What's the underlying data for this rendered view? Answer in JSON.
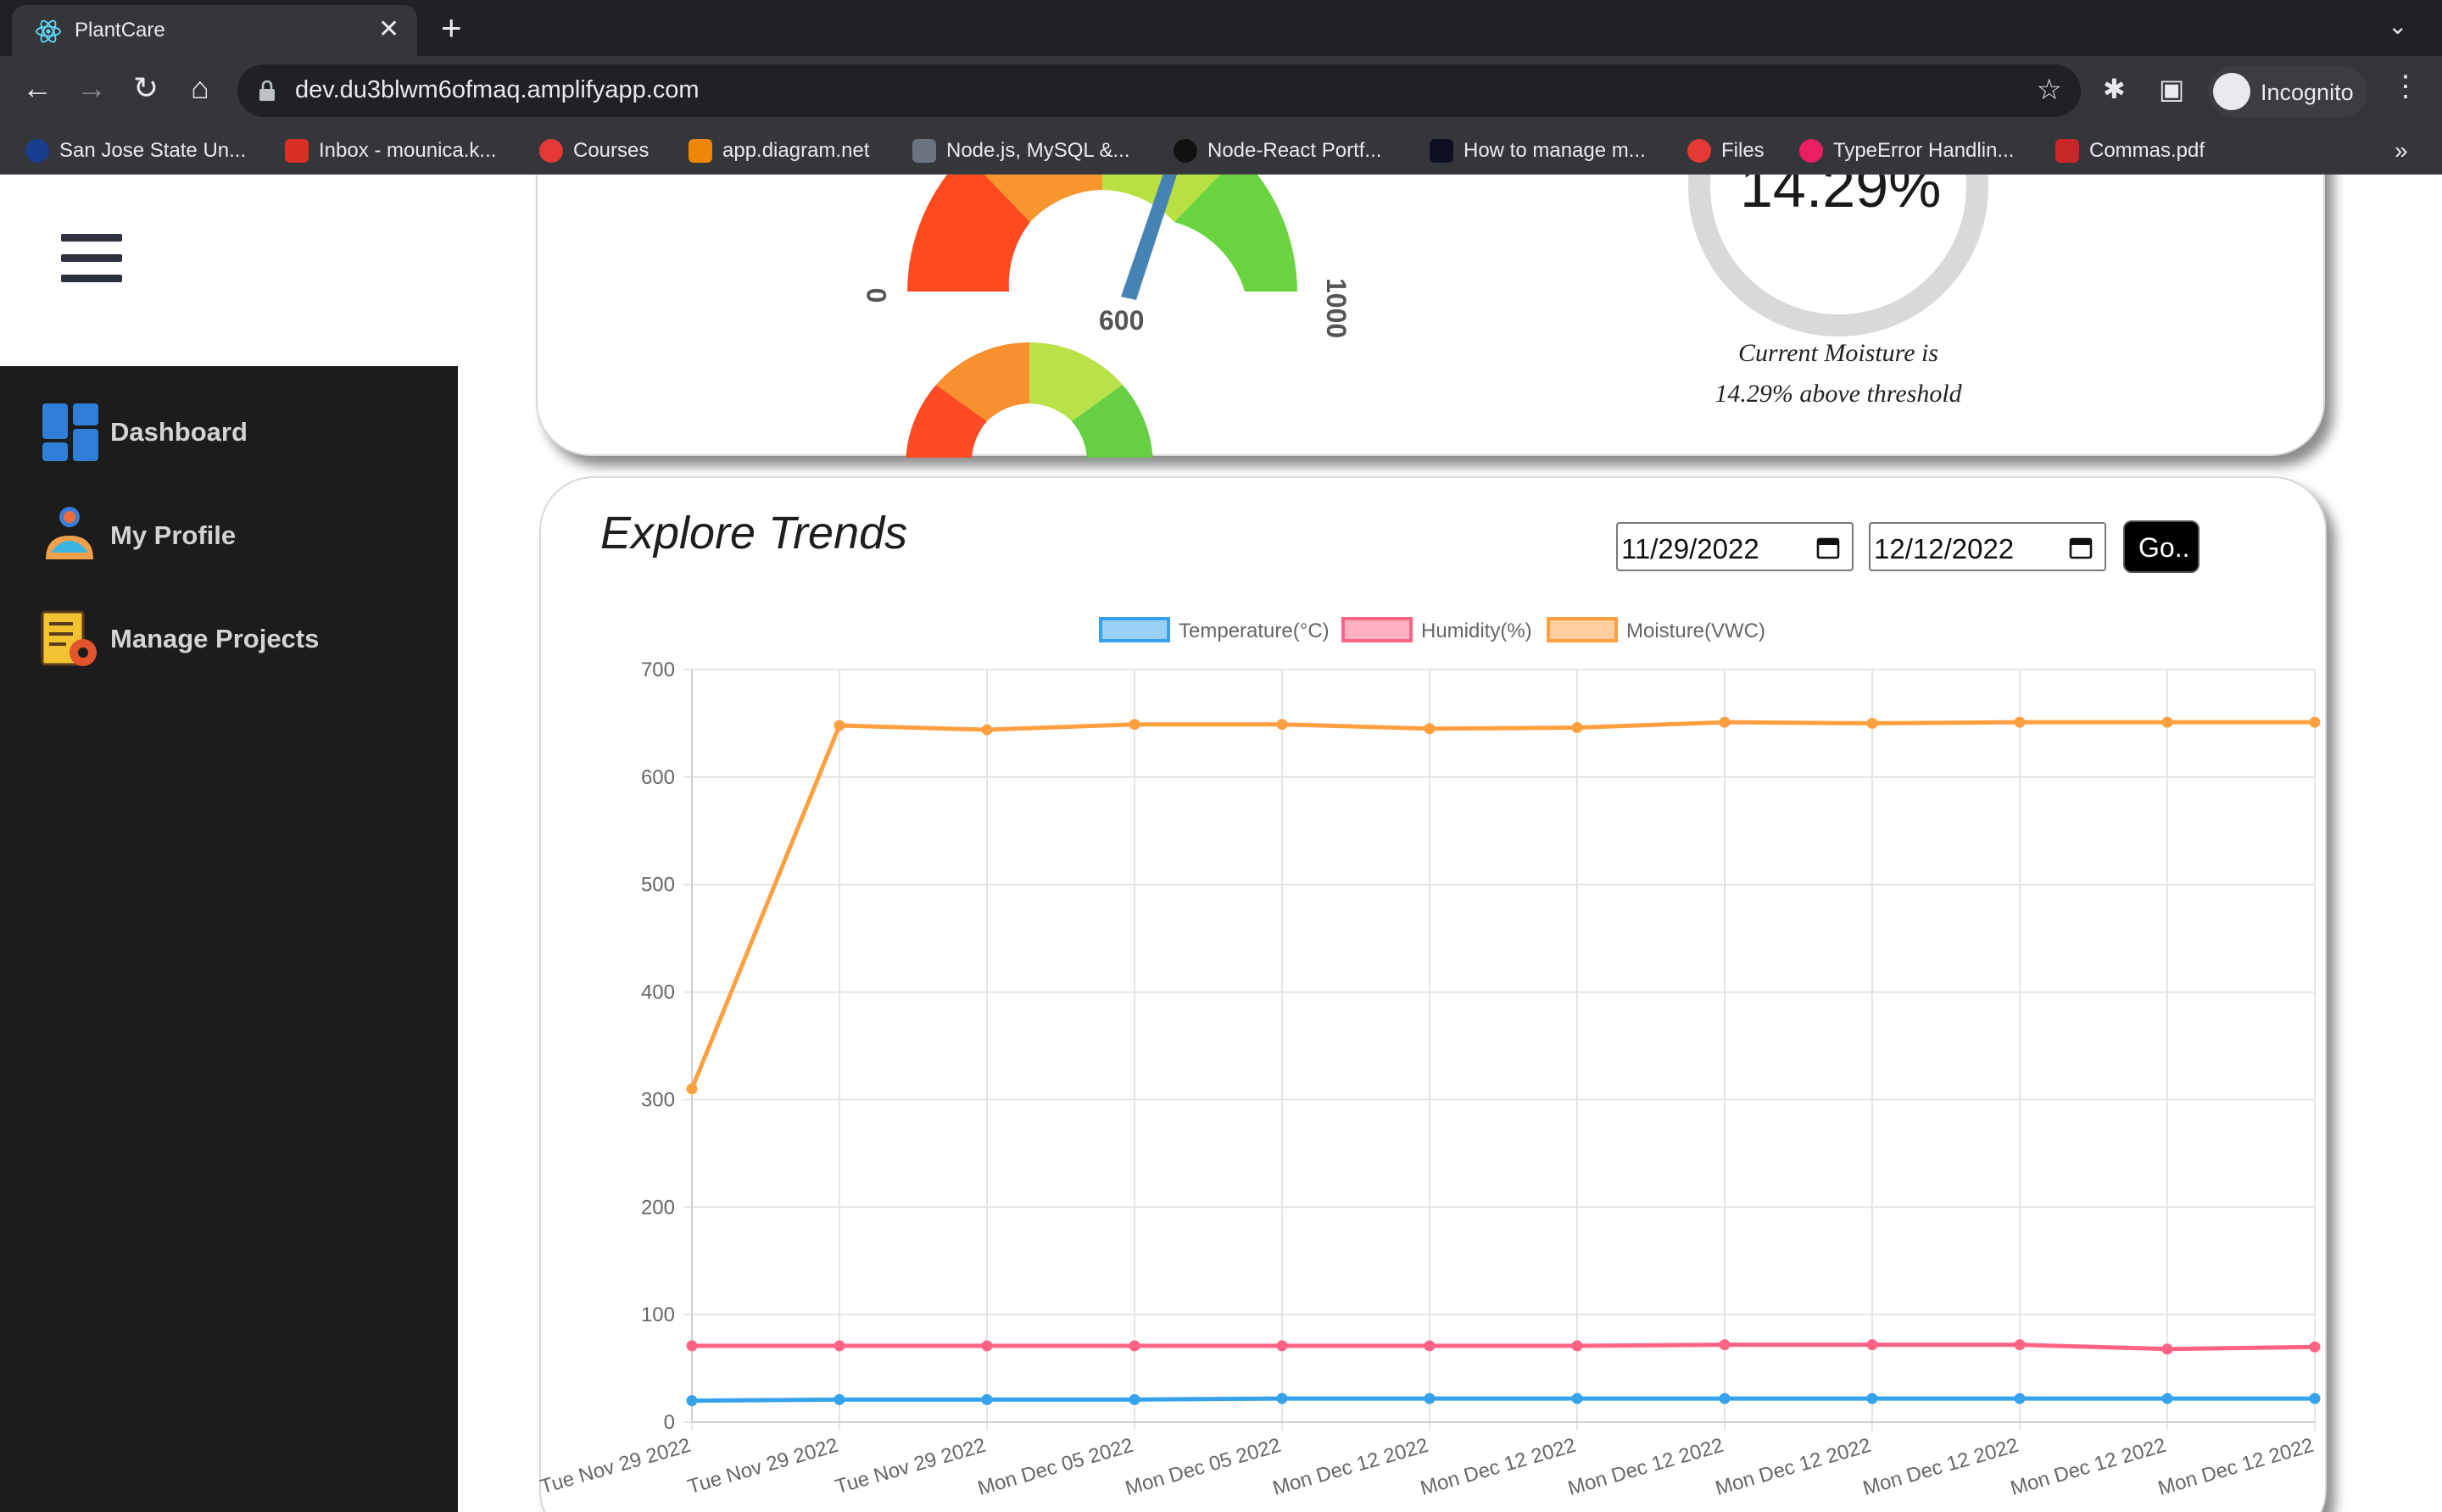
{
  "browser": {
    "tab_title": "PlantCare",
    "tab_close": "✕",
    "new_tab": "+",
    "tab_menu": "⌄",
    "url": "dev.du3blwm6ofmaq.amplifyapp.com",
    "profile_label": "Incognito",
    "nav": {
      "back": "←",
      "forward": "→",
      "reload": "↻",
      "home": "⌂",
      "star": "☆",
      "puzzle": "✱",
      "sidepanel": "▣",
      "menu": "⋮"
    },
    "bookmarks": [
      {
        "label": "San Jose State Un...",
        "color": "#1a3d8f"
      },
      {
        "label": "Inbox - mounica.k...",
        "color": "#d93025"
      },
      {
        "label": "Courses",
        "color": "#e53935"
      },
      {
        "label": "app.diagram.net",
        "color": "#f08705"
      },
      {
        "label": "Node.js, MySQL &...",
        "color": "#6b7280"
      },
      {
        "label": "Node-React Portf...",
        "color": "#111111"
      },
      {
        "label": "How to manage m...",
        "color": "#0f0f23"
      },
      {
        "label": "Files",
        "color": "#e53935"
      },
      {
        "label": "TypeError Handlin...",
        "color": "#e91e63"
      },
      {
        "label": "Commas.pdf",
        "color": "#c62828"
      }
    ],
    "bookmarks_more": "»"
  },
  "sidebar": {
    "items": [
      {
        "label": "Dashboard",
        "icon": "dashboard-icon"
      },
      {
        "label": "My Profile",
        "icon": "profile-icon"
      },
      {
        "label": "Manage Projects",
        "icon": "manage-projects-icon"
      }
    ]
  },
  "gauge": {
    "min_label": "0",
    "max_label": "1000",
    "value_label": "600",
    "value": 600
  },
  "moisture": {
    "value_text": "14.29%",
    "line1": "Current Moisture is",
    "line2": "14.29% above threshold"
  },
  "trends": {
    "title": "Explore Trends",
    "start_date": "11/29/2022",
    "end_date": "12/12/2022",
    "go_label": "Go.."
  },
  "chart_data": {
    "type": "line",
    "categories": [
      "Tue Nov 29 2022",
      "Tue Nov 29 2022",
      "Tue Nov 29 2022",
      "Mon Dec 05 2022",
      "Mon Dec 05 2022",
      "Mon Dec 12 2022",
      "Mon Dec 12 2022",
      "Mon Dec 12 2022",
      "Mon Dec 12 2022",
      "Mon Dec 12 2022",
      "Mon Dec 12 2022",
      "Mon Dec 12 2022"
    ],
    "series": [
      {
        "name": "Temperature(°C)",
        "color": "#36a2eb",
        "values": [
          20,
          21,
          21,
          21,
          22,
          22,
          22,
          22,
          22,
          22,
          22,
          22
        ]
      },
      {
        "name": "Humidity(%)",
        "color": "#ff6384",
        "values": [
          71,
          71,
          71,
          71,
          71,
          71,
          71,
          72,
          72,
          72,
          68,
          70
        ]
      },
      {
        "name": "Moisture(VWC)",
        "color": "#ff9f40",
        "values": [
          310,
          648,
          644,
          649,
          649,
          645,
          646,
          651,
          650,
          651,
          651,
          651
        ]
      }
    ],
    "yticks": [
      "0",
      "100",
      "200",
      "300",
      "400",
      "500",
      "600",
      "700"
    ],
    "ylim": [
      0,
      700
    ],
    "grid": true,
    "legend": "top-center"
  }
}
